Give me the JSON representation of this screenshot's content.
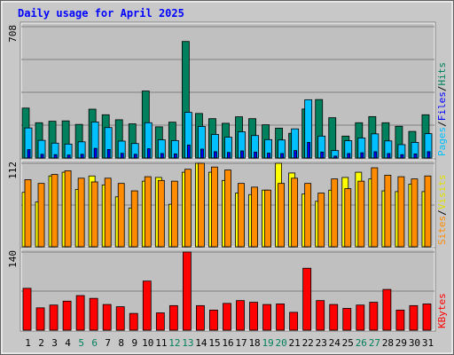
{
  "chart_data": [
    {
      "type": "bar",
      "title": "Daily usage for April 2025",
      "panel": "hits-files-pages",
      "ymax_label": "708",
      "right_labels": [
        "Pages",
        "Files",
        "Hits"
      ],
      "label_sep": "/",
      "categories": [
        "1",
        "2",
        "3",
        "4",
        "5",
        "6",
        "7",
        "8",
        "9",
        "10",
        "11",
        "12",
        "13",
        "14",
        "15",
        "16",
        "17",
        "18",
        "19",
        "20",
        "21",
        "22",
        "23",
        "24",
        "25",
        "26",
        "27",
        "28",
        "29",
        "30",
        "31"
      ],
      "weekend_days": [
        5,
        6,
        12,
        13,
        19,
        20,
        26,
        27
      ],
      "series": [
        {
          "name": "Hits",
          "color": "#00805c",
          "values": [
            269,
            190,
            198,
            200,
            181,
            263,
            233,
            206,
            184,
            361,
            168,
            193,
            628,
            240,
            212,
            187,
            222,
            212,
            179,
            161,
            133,
            264,
            315,
            217,
            118,
            190,
            223,
            190,
            171,
            143,
            233
          ]
        },
        {
          "name": "Files",
          "color": "#00c0ff",
          "values": [
            162,
            95,
            80,
            75,
            87,
            194,
            164,
            91,
            78,
            190,
            98,
            94,
            246,
            170,
            127,
            112,
            141,
            121,
            99,
            97,
            157,
            314,
            118,
            40,
            93,
            108,
            130,
            92,
            72,
            84,
            131
          ]
        },
        {
          "name": "Pages",
          "color": "#0000ff",
          "values": [
            45,
            20,
            18,
            16,
            20,
            52,
            46,
            25,
            20,
            50,
            24,
            22,
            70,
            48,
            34,
            30,
            38,
            32,
            26,
            24,
            40,
            84,
            32,
            10,
            24,
            28,
            34,
            24,
            18,
            22,
            34
          ]
        }
      ]
    },
    {
      "type": "bar",
      "panel": "visits-sites",
      "ymax_label": "112",
      "right_labels": [
        "Sites",
        "Visits"
      ],
      "label_sep": "/",
      "series": [
        {
          "name": "Visits",
          "color": "#ffff00",
          "values": [
            73,
            60,
            95,
            100,
            77,
            95,
            83,
            67,
            52,
            88,
            93,
            57,
            100,
            112,
            100,
            89,
            72,
            70,
            76,
            112,
            99,
            71,
            61,
            76,
            93,
            100,
            91,
            75,
            74,
            84,
            74
          ]
        },
        {
          "name": "Sites",
          "color": "#ff8c00",
          "values": [
            90,
            85,
            97,
            102,
            92,
            87,
            92,
            85,
            75,
            94,
            89,
            88,
            104,
            112,
            107,
            103,
            85,
            80,
            76,
            85,
            92,
            85,
            72,
            91,
            78,
            88,
            106,
            96,
            94,
            91,
            95
          ]
        }
      ]
    },
    {
      "type": "bar",
      "panel": "kbytes",
      "ymax_label": "140",
      "right_labels": [
        "KBytes"
      ],
      "series": [
        {
          "name": "KBytes",
          "color": "#ff0000",
          "values": [
            75,
            40,
            45,
            52,
            62,
            57,
            46,
            42,
            30,
            88,
            31,
            44,
            140,
            44,
            36,
            48,
            53,
            50,
            46,
            47,
            32,
            111,
            53,
            46,
            39,
            45,
            50,
            73,
            36,
            44,
            47
          ]
        }
      ]
    }
  ],
  "colors": {
    "plot_bg": "#c0c0c0",
    "frame": "#a0a0a0",
    "title": "#0000ff",
    "axis_day": "#000000",
    "axis_weekend": "#00805c",
    "grid": "#808080"
  }
}
